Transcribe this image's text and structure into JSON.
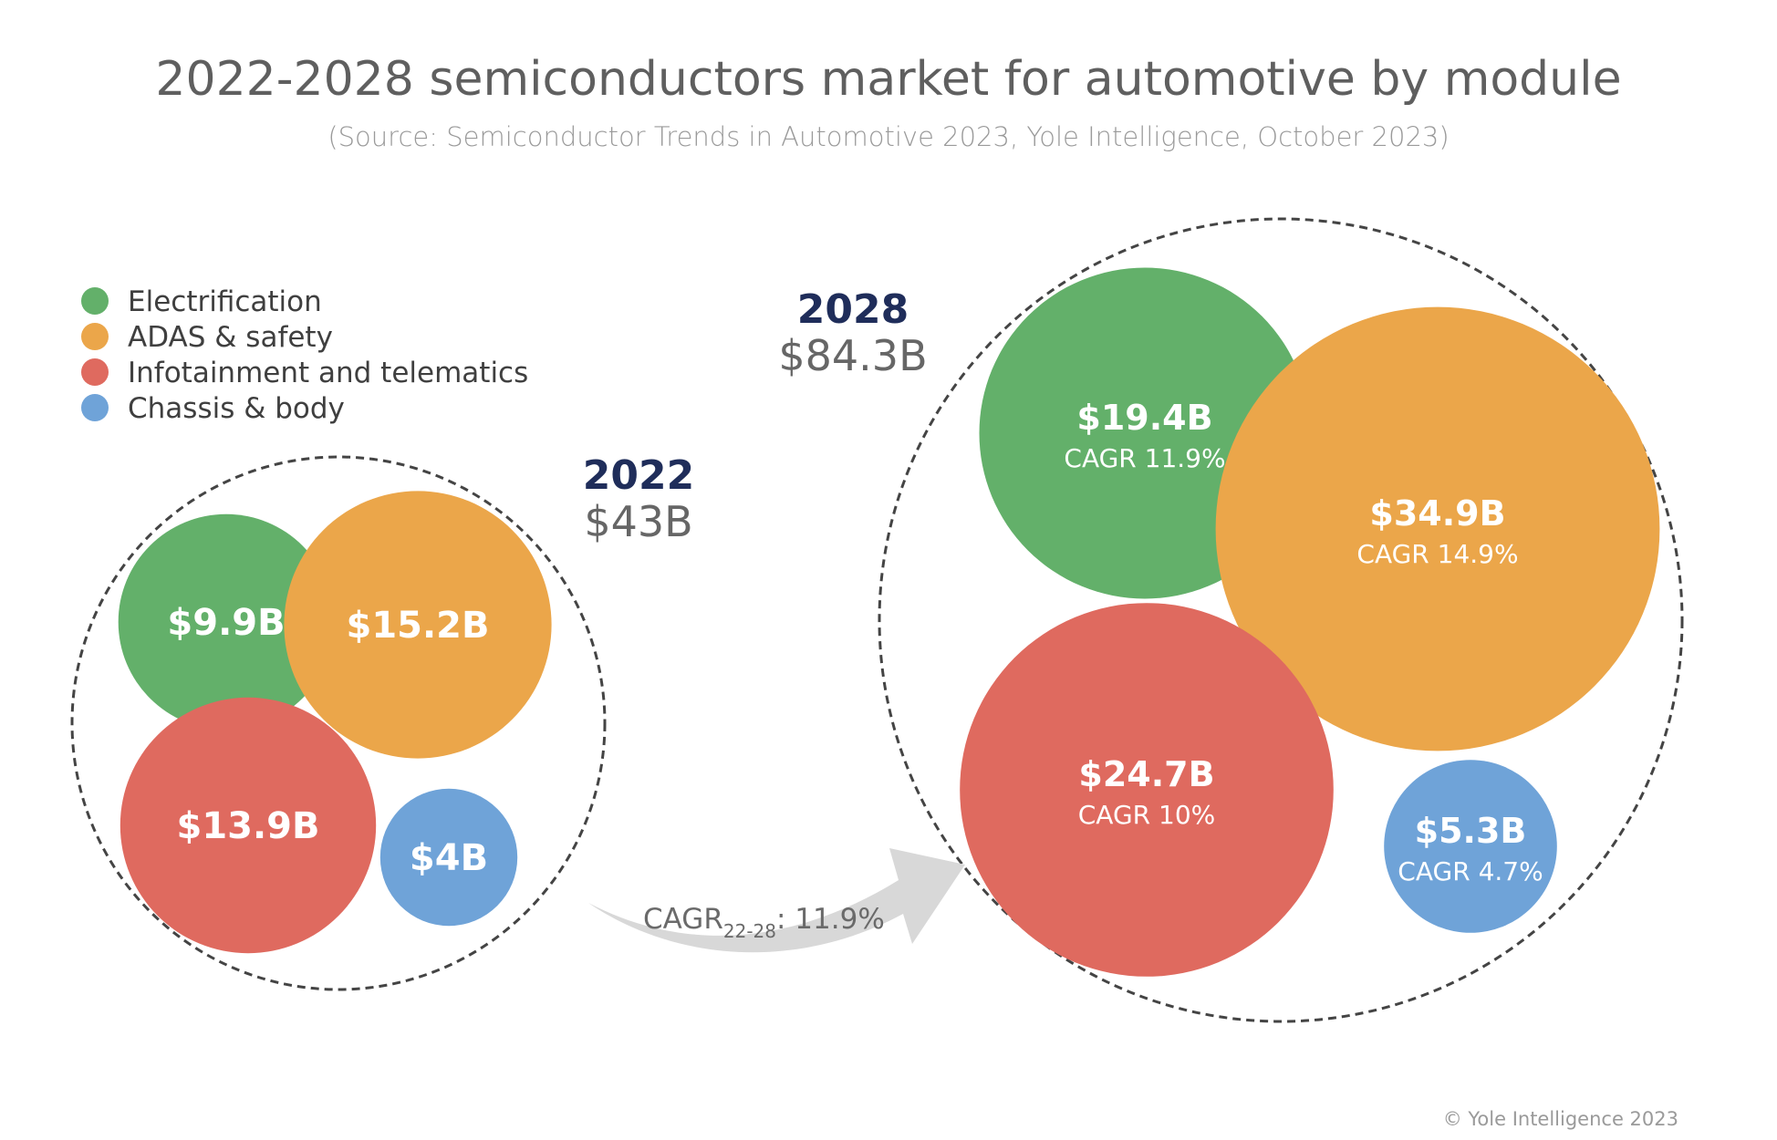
{
  "chart_data": {
    "type": "bubble",
    "title": "2022-2028 semiconductors market for automotive by module",
    "subtitle": "(Source: Semiconductor Trends in Automotive 2023, Yole Intelligence, October 2023)",
    "copyright": "© Yole Intelligence 2023",
    "legend": {
      "placement": "top-left",
      "items": [
        {
          "name": "Electrification",
          "color": "#63b06a"
        },
        {
          "name": "ADAS & safety",
          "color": "#eba64a"
        },
        {
          "name": "Infotainment and telematics",
          "color": "#df6a5f"
        },
        {
          "name": "Chassis & body",
          "color": "#6fa3d8"
        }
      ]
    },
    "overall_cagr": {
      "label": "CAGR",
      "sub": "22-28",
      "value": ": 11.9%"
    },
    "groups": [
      {
        "year": "2022",
        "total_label": "$43B",
        "total": 43,
        "bubbles": [
          {
            "series": "Electrification",
            "value": 9.9,
            "label": "$9.9B",
            "cagr": ""
          },
          {
            "series": "ADAS & safety",
            "value": 15.2,
            "label": "$15.2B",
            "cagr": ""
          },
          {
            "series": "Infotainment and telematics",
            "value": 13.9,
            "label": "$13.9B",
            "cagr": ""
          },
          {
            "series": "Chassis & body",
            "value": 4,
            "label": "$4B",
            "cagr": ""
          }
        ]
      },
      {
        "year": "2028",
        "total_label": "$84.3B",
        "total": 84.3,
        "bubbles": [
          {
            "series": "Electrification",
            "value": 19.4,
            "label": "$19.4B",
            "cagr": "CAGR 11.9%"
          },
          {
            "series": "ADAS & safety",
            "value": 34.9,
            "label": "$34.9B",
            "cagr": "CAGR 14.9%"
          },
          {
            "series": "Infotainment and telematics",
            "value": 24.7,
            "label": "$24.7B",
            "cagr": "CAGR 10%"
          },
          {
            "series": "Chassis & body",
            "value": 5.3,
            "label": "$5.3B",
            "cagr": "CAGR 4.7%"
          }
        ]
      }
    ]
  }
}
